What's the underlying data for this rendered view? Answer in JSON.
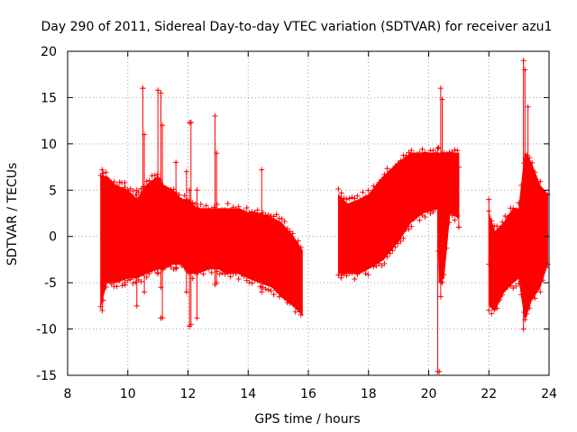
{
  "chart_data": {
    "type": "scatter",
    "title": "Day 290 of 2011, Sidereal Day-to-day VTEC variation (SDTVAR) for receiver azu1",
    "xlabel": "GPS time / hours",
    "ylabel": "SDTVAR / TECUs",
    "xlim": [
      8,
      24
    ],
    "ylim": [
      -15,
      20
    ],
    "xticks": [
      8,
      10,
      12,
      14,
      16,
      18,
      20,
      22,
      24
    ],
    "yticks": [
      -15,
      -10,
      -5,
      0,
      5,
      10,
      15,
      20
    ],
    "xtick_labels": [
      "8",
      "10",
      "12",
      "14",
      "16",
      "18",
      "20",
      "22",
      "24"
    ],
    "ytick_labels": [
      "-15",
      "-10",
      "-5",
      "0",
      "5",
      "10",
      "15",
      "20"
    ],
    "grid": true,
    "marker": "+",
    "color": "#ff0000",
    "series": [
      {
        "name": "SDTVAR",
        "envelope": [
          {
            "x": 9.1,
            "lo": -7.5,
            "hi": 6.5
          },
          {
            "x": 9.3,
            "lo": -5.0,
            "hi": 6.5
          },
          {
            "x": 9.6,
            "lo": -5.0,
            "hi": 5.5
          },
          {
            "x": 10.0,
            "lo": -4.5,
            "hi": 5.0
          },
          {
            "x": 10.3,
            "lo": -4.5,
            "hi": 4.0
          },
          {
            "x": 10.6,
            "lo": -4.0,
            "hi": 5.5
          },
          {
            "x": 11.0,
            "lo": -3.5,
            "hi": 6.5
          },
          {
            "x": 11.2,
            "lo": -3.5,
            "hi": 5.5
          },
          {
            "x": 11.5,
            "lo": -3.0,
            "hi": 5.0
          },
          {
            "x": 11.8,
            "lo": -3.0,
            "hi": 4.0
          },
          {
            "x": 12.0,
            "lo": -4.0,
            "hi": 4.0
          },
          {
            "x": 12.3,
            "lo": -4.0,
            "hi": 3.0
          },
          {
            "x": 12.7,
            "lo": -3.5,
            "hi": 3.0
          },
          {
            "x": 13.0,
            "lo": -3.5,
            "hi": 3.0
          },
          {
            "x": 13.3,
            "lo": -4.0,
            "hi": 3.0
          },
          {
            "x": 13.7,
            "lo": -4.0,
            "hi": 3.0
          },
          {
            "x": 14.0,
            "lo": -4.5,
            "hi": 2.5
          },
          {
            "x": 14.4,
            "lo": -5.0,
            "hi": 2.5
          },
          {
            "x": 14.8,
            "lo": -5.5,
            "hi": 2.0
          },
          {
            "x": 15.1,
            "lo": -6.5,
            "hi": 1.5
          },
          {
            "x": 15.5,
            "lo": -7.5,
            "hi": 0.0
          },
          {
            "x": 15.8,
            "lo": -8.5,
            "hi": -1.5
          },
          {
            "x": 17.0,
            "lo": -4.0,
            "hi": 4.5
          },
          {
            "x": 17.3,
            "lo": -4.0,
            "hi": 3.5
          },
          {
            "x": 17.7,
            "lo": -4.0,
            "hi": 4.0
          },
          {
            "x": 18.0,
            "lo": -3.5,
            "hi": 4.5
          },
          {
            "x": 18.5,
            "lo": -2.5,
            "hi": 6.5
          },
          {
            "x": 19.0,
            "lo": -0.5,
            "hi": 8.0
          },
          {
            "x": 19.4,
            "lo": 1.5,
            "hi": 9.0
          },
          {
            "x": 19.8,
            "lo": 2.5,
            "hi": 9.0
          },
          {
            "x": 20.3,
            "lo": 3.0,
            "hi": 9.0
          },
          {
            "x": 20.35,
            "lo": -5.0,
            "hi": 9.0
          },
          {
            "x": 20.5,
            "lo": -4.5,
            "hi": 9.0
          },
          {
            "x": 20.7,
            "lo": 2.5,
            "hi": 9.0
          },
          {
            "x": 21.0,
            "lo": 2.0,
            "hi": 9.0
          },
          {
            "x": 22.0,
            "lo": -7.5,
            "hi": 2.5
          },
          {
            "x": 22.2,
            "lo": -8.0,
            "hi": 0.5
          },
          {
            "x": 22.5,
            "lo": -6.0,
            "hi": 1.5
          },
          {
            "x": 22.8,
            "lo": -5.0,
            "hi": 3.0
          },
          {
            "x": 23.0,
            "lo": -4.5,
            "hi": 3.0
          },
          {
            "x": 23.2,
            "lo": -9.0,
            "hi": 9.0
          },
          {
            "x": 23.4,
            "lo": -7.0,
            "hi": 8.0
          },
          {
            "x": 23.7,
            "lo": -5.5,
            "hi": 5.5
          },
          {
            "x": 23.95,
            "lo": -3.0,
            "hi": 4.5
          }
        ],
        "spikes": [
          {
            "x": 9.15,
            "y0": -8.0,
            "y1": 7.2
          },
          {
            "x": 9.9,
            "y0": -5.0,
            "y1": 5.8
          },
          {
            "x": 10.3,
            "y0": -7.5,
            "y1": 5.0
          },
          {
            "x": 10.5,
            "y0": -4.0,
            "y1": 16.0
          },
          {
            "x": 10.55,
            "y0": -6.0,
            "y1": 11.0
          },
          {
            "x": 11.0,
            "y0": -4.0,
            "y1": 15.8
          },
          {
            "x": 11.1,
            "y0": -5.5,
            "y1": 15.5
          },
          {
            "x": 11.15,
            "y0": -8.8,
            "y1": 12.0
          },
          {
            "x": 11.6,
            "y0": -3.5,
            "y1": 8.0
          },
          {
            "x": 11.95,
            "y0": -6.0,
            "y1": 7.0
          },
          {
            "x": 12.05,
            "y0": -9.7,
            "y1": 5.0
          },
          {
            "x": 12.1,
            "y0": -9.5,
            "y1": 12.3
          },
          {
            "x": 12.3,
            "y0": -8.8,
            "y1": 5.0
          },
          {
            "x": 12.9,
            "y0": -5.2,
            "y1": 13.0
          },
          {
            "x": 12.95,
            "y0": -5.0,
            "y1": 9.0
          },
          {
            "x": 14.45,
            "y0": -6.0,
            "y1": 7.2
          },
          {
            "x": 17.1,
            "y0": -4.2,
            "y1": 4.7
          },
          {
            "x": 20.3,
            "y0": -14.6,
            "y1": 9.5
          },
          {
            "x": 20.4,
            "y0": -6.5,
            "y1": 16.0
          },
          {
            "x": 20.45,
            "y0": -5.0,
            "y1": 14.8
          },
          {
            "x": 21.0,
            "y0": 1.0,
            "y1": 7.5
          },
          {
            "x": 22.0,
            "y0": -3.0,
            "y1": 4.0
          },
          {
            "x": 23.15,
            "y0": -10.0,
            "y1": 19.0
          },
          {
            "x": 23.2,
            "y0": -9.0,
            "y1": 18.0
          },
          {
            "x": 23.3,
            "y0": -7.5,
            "y1": 14.0
          },
          {
            "x": 23.95,
            "y0": -3.0,
            "y1": 4.5
          }
        ],
        "outliers": [
          {
            "x": 9.8,
            "y": 5.8
          },
          {
            "x": 10.5,
            "y": 16.0
          },
          {
            "x": 11.1,
            "y": -8.8
          },
          {
            "x": 12.05,
            "y": 12.3
          },
          {
            "x": 12.1,
            "y": 12.3
          },
          {
            "x": 20.3,
            "y": -14.6
          },
          {
            "x": 20.35,
            "y": -14.6
          },
          {
            "x": 21.0,
            "y": 1.0
          }
        ]
      }
    ]
  }
}
